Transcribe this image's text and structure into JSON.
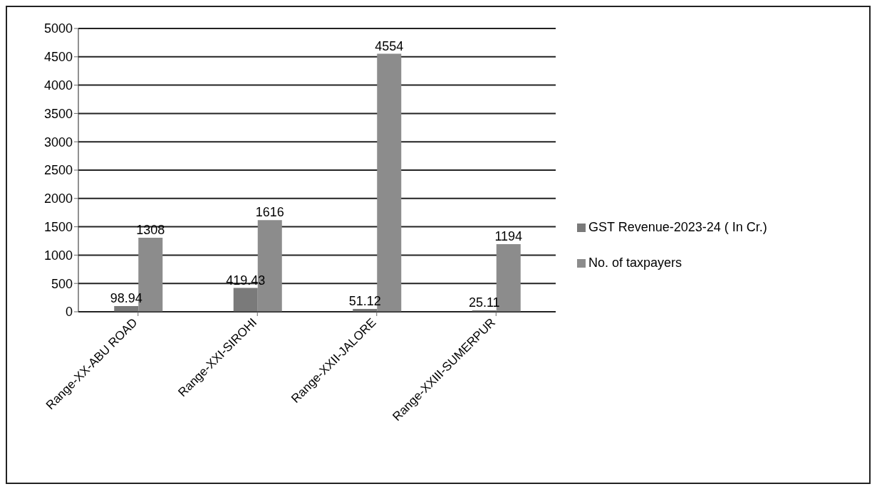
{
  "chart_data": {
    "type": "bar",
    "categories": [
      "Range-XX-ABU ROAD",
      "Range-XXI-SIROHI",
      "Range-XXII-JALORE",
      "Range-XXIII-SUMERPUR"
    ],
    "series": [
      {
        "name": "GST Revenue-2023-24 ( In Cr.)",
        "color": "#7a7a7a",
        "values": [
          98.94,
          419.43,
          51.12,
          25.11
        ]
      },
      {
        "name": "No. of taxpayers",
        "color": "#8c8c8c",
        "values": [
          1308,
          1616,
          4554,
          1194
        ]
      }
    ],
    "ylim": [
      0,
      5000
    ],
    "yticks": [
      0,
      500,
      1000,
      1500,
      2000,
      2500,
      3000,
      3500,
      4000,
      4500,
      5000
    ],
    "grid": "y",
    "legend": "right",
    "data_labels": true
  }
}
